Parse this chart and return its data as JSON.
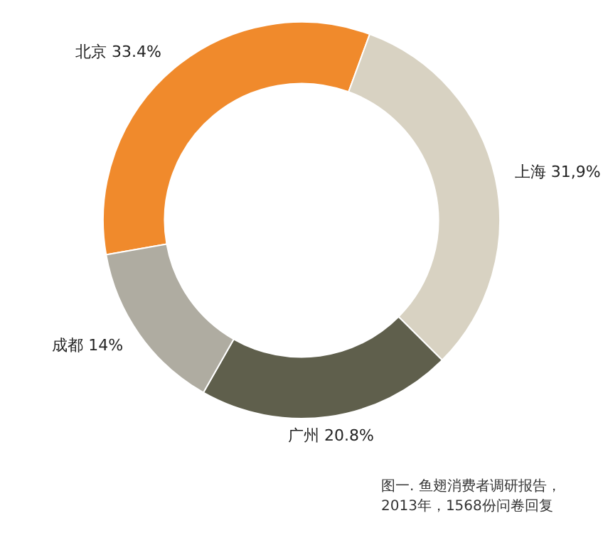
{
  "chart_data": {
    "type": "donut",
    "categories": [
      "北京",
      "上海",
      "广州",
      "成都"
    ],
    "values": [
      33.4,
      31.9,
      20.8,
      14
    ],
    "value_labels": [
      "33.4%",
      "31,9%",
      "20.8%",
      "14%"
    ],
    "colors": [
      "#f08a2c",
      "#d8d2c2",
      "#5f5f4c",
      "#afaca1"
    ],
    "annotations": [
      "图一. 鱼翅消费者调研报告，2013年，1568份问卷回复"
    ]
  }
}
